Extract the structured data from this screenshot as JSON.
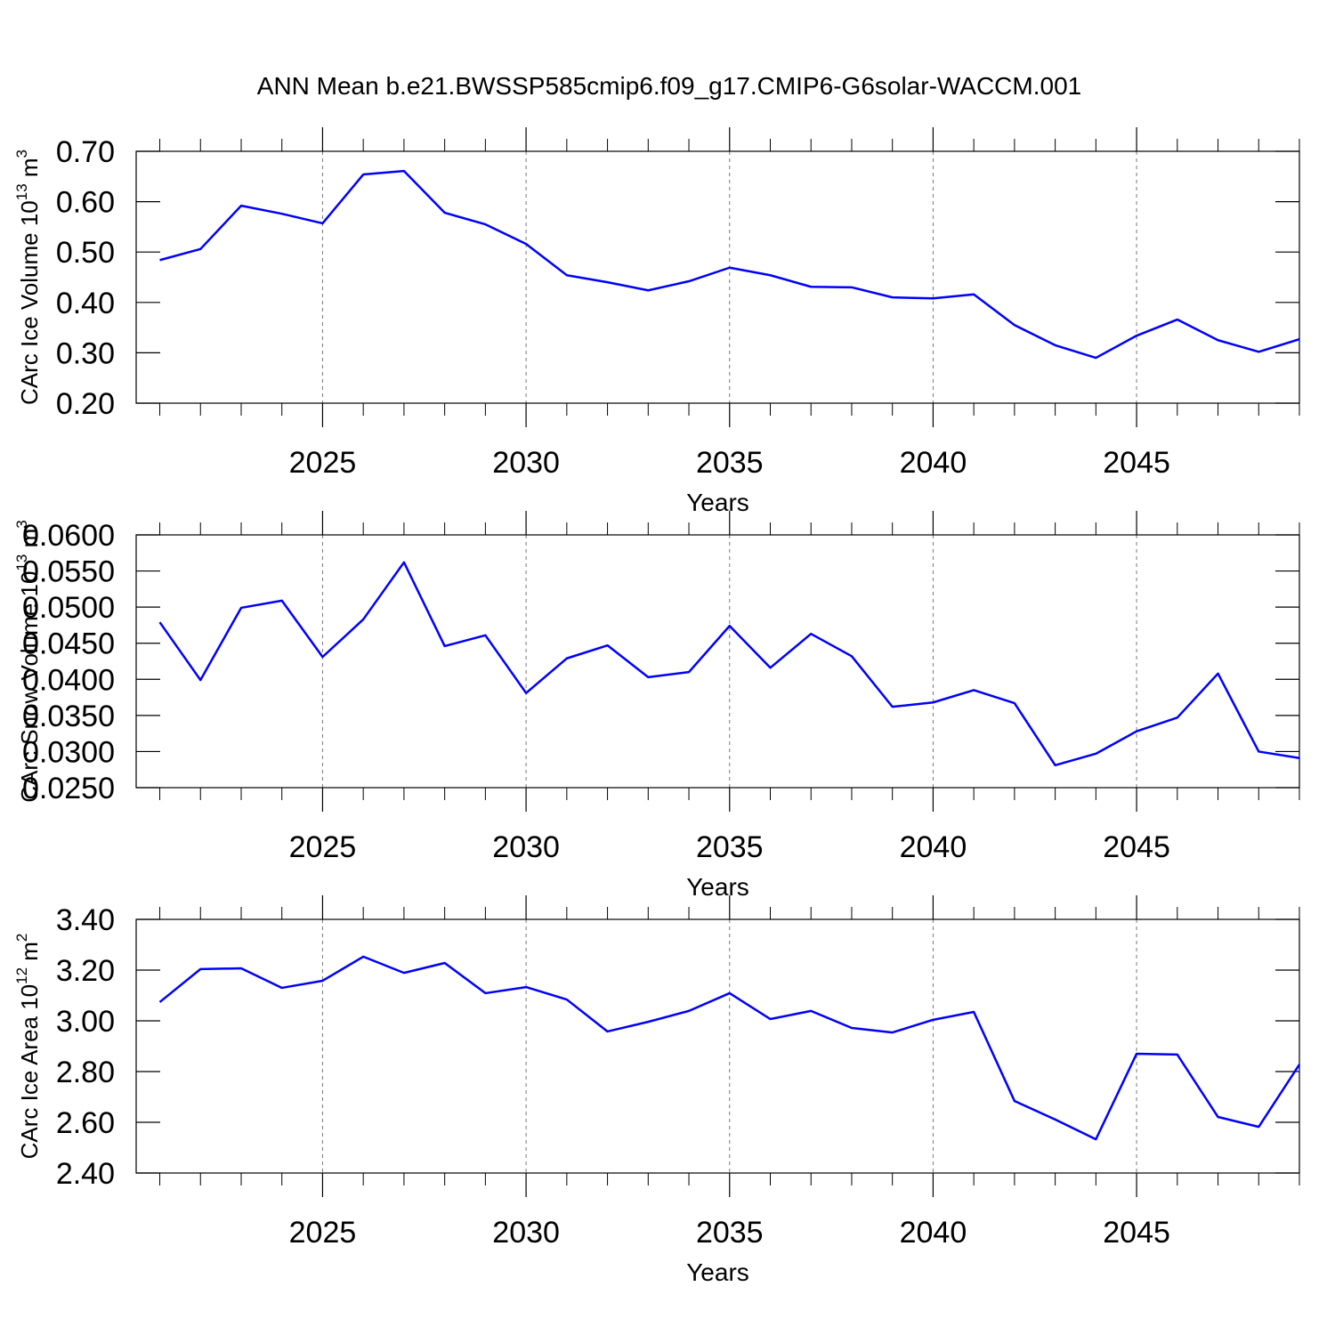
{
  "title": "ANN Mean b.e21.BWSSP585cmip6.f09_g17.CMIP6-G6solar-WACCM.001",
  "chart_data": [
    {
      "type": "line",
      "ylabel": [
        "CArc Ice Volume 10",
        "13",
        " m",
        "3"
      ],
      "xlabel": "Years",
      "x": [
        2021,
        2022,
        2023,
        2024,
        2025,
        2026,
        2027,
        2028,
        2029,
        2030,
        2031,
        2032,
        2033,
        2034,
        2035,
        2036,
        2037,
        2038,
        2039,
        2040,
        2041,
        2042,
        2043,
        2044,
        2045,
        2046,
        2047,
        2048,
        2049
      ],
      "series": [
        {
          "color": "#0000ff",
          "values": [
            0.484,
            0.506,
            0.592,
            0.576,
            0.557,
            0.654,
            0.661,
            0.578,
            0.555,
            0.516,
            0.454,
            0.44,
            0.424,
            0.442,
            0.469,
            0.454,
            0.431,
            0.43,
            0.41,
            0.408,
            0.416,
            0.355,
            0.315,
            0.29,
            0.334,
            0.366,
            0.325,
            0.302,
            0.327
          ]
        }
      ],
      "xlim": [
        2020.42,
        2049
      ],
      "ylim": [
        0.2,
        0.7
      ],
      "xticks": [
        2025,
        2030,
        2035,
        2040,
        2045
      ],
      "xminorticks": [
        2021,
        2022,
        2023,
        2024,
        2026,
        2027,
        2028,
        2029,
        2031,
        2032,
        2033,
        2034,
        2036,
        2037,
        2038,
        2039,
        2041,
        2042,
        2043,
        2044,
        2046,
        2047,
        2048,
        2049
      ],
      "yticks": [
        {
          "value": 0.2,
          "label": "0.20"
        },
        {
          "value": 0.3,
          "label": "0.30"
        },
        {
          "value": 0.4,
          "label": "0.40"
        },
        {
          "value": 0.5,
          "label": "0.50"
        },
        {
          "value": 0.6,
          "label": "0.60"
        },
        {
          "value": 0.7,
          "label": "0.70"
        }
      ],
      "grid": true
    },
    {
      "type": "line",
      "ylabel": [
        "CArc Snow Volume 10",
        "13",
        " m",
        "3"
      ],
      "xlabel": "Years",
      "x": [
        2021,
        2022,
        2023,
        2024,
        2025,
        2026,
        2027,
        2028,
        2029,
        2030,
        2031,
        2032,
        2033,
        2034,
        2035,
        2036,
        2037,
        2038,
        2039,
        2040,
        2041,
        2042,
        2043,
        2044,
        2045,
        2046,
        2047,
        2048,
        2049
      ],
      "series": [
        {
          "color": "#0000ff",
          "values": [
            0.0479,
            0.0399,
            0.0499,
            0.0509,
            0.0431,
            0.0483,
            0.0562,
            0.0446,
            0.0461,
            0.0381,
            0.0429,
            0.0447,
            0.0403,
            0.041,
            0.0474,
            0.0416,
            0.0463,
            0.0432,
            0.0362,
            0.0368,
            0.0385,
            0.0367,
            0.0281,
            0.0297,
            0.0328,
            0.0347,
            0.0408,
            0.03,
            0.0291
          ]
        }
      ],
      "xlim": [
        2020.42,
        2049
      ],
      "ylim": [
        0.025,
        0.06
      ],
      "xticks": [
        2025,
        2030,
        2035,
        2040,
        2045
      ],
      "xminorticks": [
        2021,
        2022,
        2023,
        2024,
        2026,
        2027,
        2028,
        2029,
        2031,
        2032,
        2033,
        2034,
        2036,
        2037,
        2038,
        2039,
        2041,
        2042,
        2043,
        2044,
        2046,
        2047,
        2048,
        2049
      ],
      "yticks": [
        {
          "value": 0.025,
          "label": "0.0250"
        },
        {
          "value": 0.03,
          "label": "0.0300"
        },
        {
          "value": 0.035,
          "label": "0.0350"
        },
        {
          "value": 0.04,
          "label": "0.0400"
        },
        {
          "value": 0.045,
          "label": "0.0450"
        },
        {
          "value": 0.05,
          "label": "0.0500"
        },
        {
          "value": 0.055,
          "label": "0.0550"
        },
        {
          "value": 0.06,
          "label": "0.0600"
        }
      ],
      "grid": true
    },
    {
      "type": "line",
      "ylabel": [
        "CArc Ice Area 10",
        "12",
        " m",
        "2"
      ],
      "xlabel": "Years",
      "x": [
        2021,
        2022,
        2023,
        2024,
        2025,
        2026,
        2027,
        2028,
        2029,
        2030,
        2031,
        2032,
        2033,
        2034,
        2035,
        2036,
        2037,
        2038,
        2039,
        2040,
        2041,
        2042,
        2043,
        2044,
        2045,
        2046,
        2047,
        2048,
        2049
      ],
      "series": [
        {
          "color": "#0000ff",
          "values": [
            3.074,
            3.204,
            3.207,
            3.13,
            3.158,
            3.253,
            3.189,
            3.228,
            3.109,
            3.133,
            3.084,
            2.958,
            2.996,
            3.039,
            3.109,
            3.007,
            3.039,
            2.972,
            2.954,
            3.004,
            3.035,
            2.684,
            2.611,
            2.533,
            2.87,
            2.867,
            2.621,
            2.582,
            2.828
          ]
        }
      ],
      "xlim": [
        2020.42,
        2049
      ],
      "ylim": [
        2.4,
        3.4
      ],
      "xticks": [
        2025,
        2030,
        2035,
        2040,
        2045
      ],
      "xminorticks": [
        2021,
        2022,
        2023,
        2024,
        2026,
        2027,
        2028,
        2029,
        2031,
        2032,
        2033,
        2034,
        2036,
        2037,
        2038,
        2039,
        2041,
        2042,
        2043,
        2044,
        2046,
        2047,
        2048,
        2049
      ],
      "yticks": [
        {
          "value": 2.4,
          "label": "2.40"
        },
        {
          "value": 2.6,
          "label": "2.60"
        },
        {
          "value": 2.8,
          "label": "2.80"
        },
        {
          "value": 3.0,
          "label": "3.00"
        },
        {
          "value": 3.2,
          "label": "3.20"
        },
        {
          "value": 3.4,
          "label": "3.40"
        }
      ],
      "grid": true
    }
  ]
}
